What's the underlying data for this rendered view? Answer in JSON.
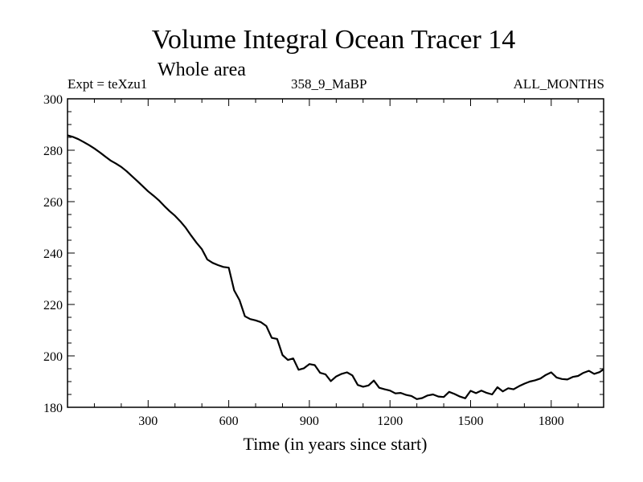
{
  "chart_data": {
    "type": "line",
    "title": "Volume Integral Ocean Tracer 14",
    "subtitle": "Whole area",
    "label_left": "Expt = teXzu1",
    "label_center": "358_9_MaBP",
    "label_right": "ALL_MONTHS",
    "xlabel": "Time (in years since start)",
    "ylabel": "",
    "xlim": [
      0,
      1995
    ],
    "ylim": [
      180,
      300
    ],
    "x_ticks": [
      300,
      600,
      900,
      1200,
      1500,
      1800
    ],
    "y_ticks": [
      180,
      200,
      220,
      240,
      260,
      280,
      300
    ],
    "series": [
      {
        "name": "Volume Integral Ocean Tracer 14",
        "x": [
          0,
          20,
          40,
          60,
          80,
          100,
          120,
          140,
          160,
          180,
          200,
          220,
          240,
          260,
          280,
          300,
          320,
          340,
          360,
          380,
          400,
          420,
          440,
          460,
          480,
          500,
          520,
          540,
          560,
          580,
          600,
          620,
          640,
          660,
          680,
          700,
          720,
          740,
          760,
          780,
          800,
          820,
          840,
          860,
          880,
          900,
          920,
          940,
          960,
          980,
          1000,
          1020,
          1040,
          1060,
          1080,
          1100,
          1120,
          1140,
          1160,
          1180,
          1200,
          1220,
          1240,
          1260,
          1280,
          1300,
          1320,
          1340,
          1360,
          1380,
          1400,
          1420,
          1440,
          1460,
          1480,
          1500,
          1520,
          1540,
          1560,
          1580,
          1600,
          1620,
          1640,
          1660,
          1680,
          1700,
          1720,
          1740,
          1760,
          1780,
          1800,
          1820,
          1840,
          1860,
          1880,
          1900,
          1920,
          1940,
          1960,
          1980,
          1995
        ],
        "y": [
          285.8,
          285.2,
          284.3,
          283.2,
          282.0,
          280.7,
          279.2,
          277.6,
          276.0,
          274.8,
          273.5,
          271.8,
          269.9,
          268.0,
          266.0,
          264.0,
          262.3,
          260.5,
          258.3,
          256.3,
          254.5,
          252.3,
          249.8,
          246.8,
          244.0,
          241.5,
          237.5,
          236.2,
          235.3,
          234.6,
          234.3,
          225.5,
          221.7,
          215.4,
          214.3,
          213.8,
          213.1,
          211.6,
          207.0,
          206.6,
          200.3,
          198.4,
          199.0,
          194.6,
          195.2,
          196.8,
          196.4,
          193.4,
          192.8,
          190.2,
          192.0,
          193.0,
          193.6,
          192.4,
          188.7,
          188.0,
          188.5,
          190.4,
          187.6,
          187.0,
          186.5,
          185.4,
          185.6,
          184.8,
          184.4,
          183.2,
          183.6,
          184.6,
          185.0,
          184.2,
          184.0,
          186.0,
          185.2,
          184.2,
          183.5,
          186.4,
          185.5,
          186.5,
          185.6,
          185.0,
          187.8,
          186.2,
          187.4,
          187.0,
          188.2,
          189.2,
          190.0,
          190.5,
          191.2,
          192.6,
          193.6,
          191.6,
          191.0,
          190.8,
          191.8,
          192.2,
          193.4,
          194.2,
          193.0,
          193.7,
          194.8
        ]
      }
    ]
  }
}
